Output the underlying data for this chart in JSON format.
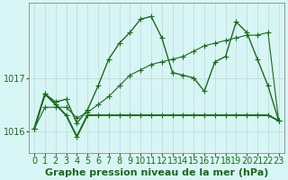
{
  "bg_color": "#d8f5f5",
  "plot_bg_color": "#d8f5f5",
  "grid_color": "#c0dede",
  "line_color": "#1a6b1a",
  "marker_color": "#1a6b1a",
  "xlabel": "Graphe pression niveau de la mer (hPa)",
  "xlim": [
    -0.5,
    23.5
  ],
  "ylim": [
    1015.6,
    1018.4
  ],
  "yticks": [
    1016,
    1017
  ],
  "xticks": [
    0,
    1,
    2,
    3,
    4,
    5,
    6,
    7,
    8,
    9,
    10,
    11,
    12,
    13,
    14,
    15,
    16,
    17,
    18,
    19,
    20,
    21,
    22,
    23
  ],
  "series": [
    [
      1016.05,
      1016.7,
      1016.55,
      1016.6,
      1016.15,
      1016.4,
      1016.85,
      1017.35,
      1017.65,
      1017.85,
      1018.1,
      1018.15,
      1017.75,
      1017.1,
      1017.05,
      1017.0,
      1016.75,
      1017.3,
      1017.4,
      1018.05,
      1017.85,
      1017.35,
      1016.85,
      1016.2
    ],
    [
      1016.05,
      1016.45,
      1016.45,
      1016.45,
      1016.25,
      1016.35,
      1016.5,
      1016.65,
      1016.85,
      1017.05,
      1017.15,
      1017.25,
      1017.3,
      1017.35,
      1017.4,
      1017.5,
      1017.6,
      1017.65,
      1017.7,
      1017.75,
      1017.8,
      1017.8,
      1017.85,
      1016.2
    ],
    [
      1016.05,
      1016.7,
      1016.5,
      1016.3,
      1015.9,
      1016.3,
      1016.3,
      1016.3,
      1016.3,
      1016.3,
      1016.3,
      1016.3,
      1016.3,
      1016.3,
      1016.3,
      1016.3,
      1016.3,
      1016.3,
      1016.3,
      1016.3,
      1016.3,
      1016.3,
      1016.3,
      1016.2
    ]
  ],
  "lws": [
    1.0,
    0.8,
    1.4
  ],
  "title_fontsize": 8,
  "tick_fontsize": 7,
  "marker": "+",
  "markersize": 4,
  "markeredgewidth": 0.8,
  "figwidth": 3.2,
  "figheight": 2.0,
  "dpi": 100
}
